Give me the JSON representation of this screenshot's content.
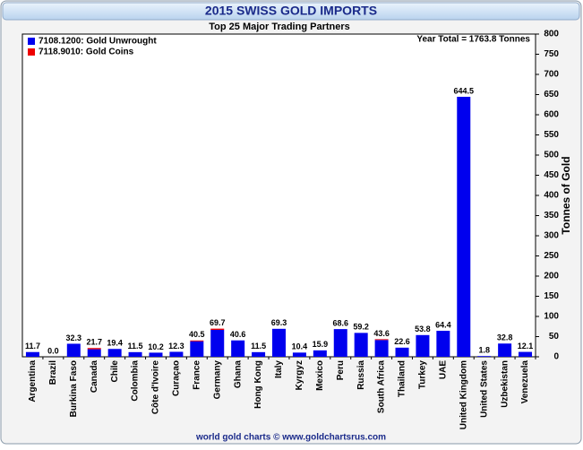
{
  "chart_data": {
    "type": "stacked_bar",
    "title": "2015 SWISS GOLD IMPORTS",
    "subtitle": "Top 25 Major Trading Partners",
    "annotation": "Year Total = 1763.8 Tonnes",
    "y_label": "Tonnes of Gold",
    "footer": "world gold charts © www.goldchartsrus.com",
    "categories": [
      "Argentina",
      "Brazil",
      "Burkina Faso",
      "Canada",
      "Chile",
      "Colombia",
      "Côte d'Ivoire",
      "Curaçao",
      "France",
      "Germany",
      "Ghana",
      "Hong Kong",
      "Italy",
      "Kyrgyz",
      "Mexico",
      "Peru",
      "Russia",
      "South Africa",
      "Thailand",
      "Turkey",
      "UAE",
      "United Kingdom",
      "United States",
      "Uzbekistan",
      "Venezuela"
    ],
    "series": [
      {
        "name": "7108.1200: Gold Unwrought",
        "color": "#0000ee",
        "values": [
          11.7,
          0.0,
          32.3,
          18.7,
          19.4,
          11.5,
          10.2,
          12.3,
          38.5,
          66.7,
          40.6,
          11.5,
          69.3,
          10.4,
          15.9,
          68.6,
          59.2,
          41.6,
          22.6,
          53.8,
          64.4,
          644.5,
          1.8,
          32.8,
          12.1
        ]
      },
      {
        "name": "7118.9010: Gold Coins",
        "color": "#ee0000",
        "values": [
          0,
          0,
          0,
          3.0,
          0,
          0,
          0,
          0,
          2.0,
          3.0,
          0,
          0,
          0,
          0,
          0,
          0,
          0,
          2.0,
          0,
          0,
          0,
          0,
          0,
          0,
          0
        ]
      }
    ],
    "value_labels": [
      "11.7",
      "0.0",
      "32.3",
      "21.7",
      "19.4",
      "11.5",
      "10.2",
      "12.3",
      "40.5",
      "69.7",
      "40.6",
      "11.5",
      "69.3",
      "10.4",
      "15.9",
      "68.6",
      "59.2",
      "43.6",
      "22.6",
      "53.8",
      "64.4",
      "644.5",
      "1.8",
      "32.8",
      "12.1"
    ],
    "ylim": [
      0,
      800
    ],
    "yticks": [
      0,
      50,
      100,
      150,
      200,
      250,
      300,
      350,
      400,
      450,
      500,
      550,
      600,
      650,
      700,
      750,
      800
    ],
    "y_axis_side": "right",
    "grid": false,
    "legend": "top-left"
  }
}
